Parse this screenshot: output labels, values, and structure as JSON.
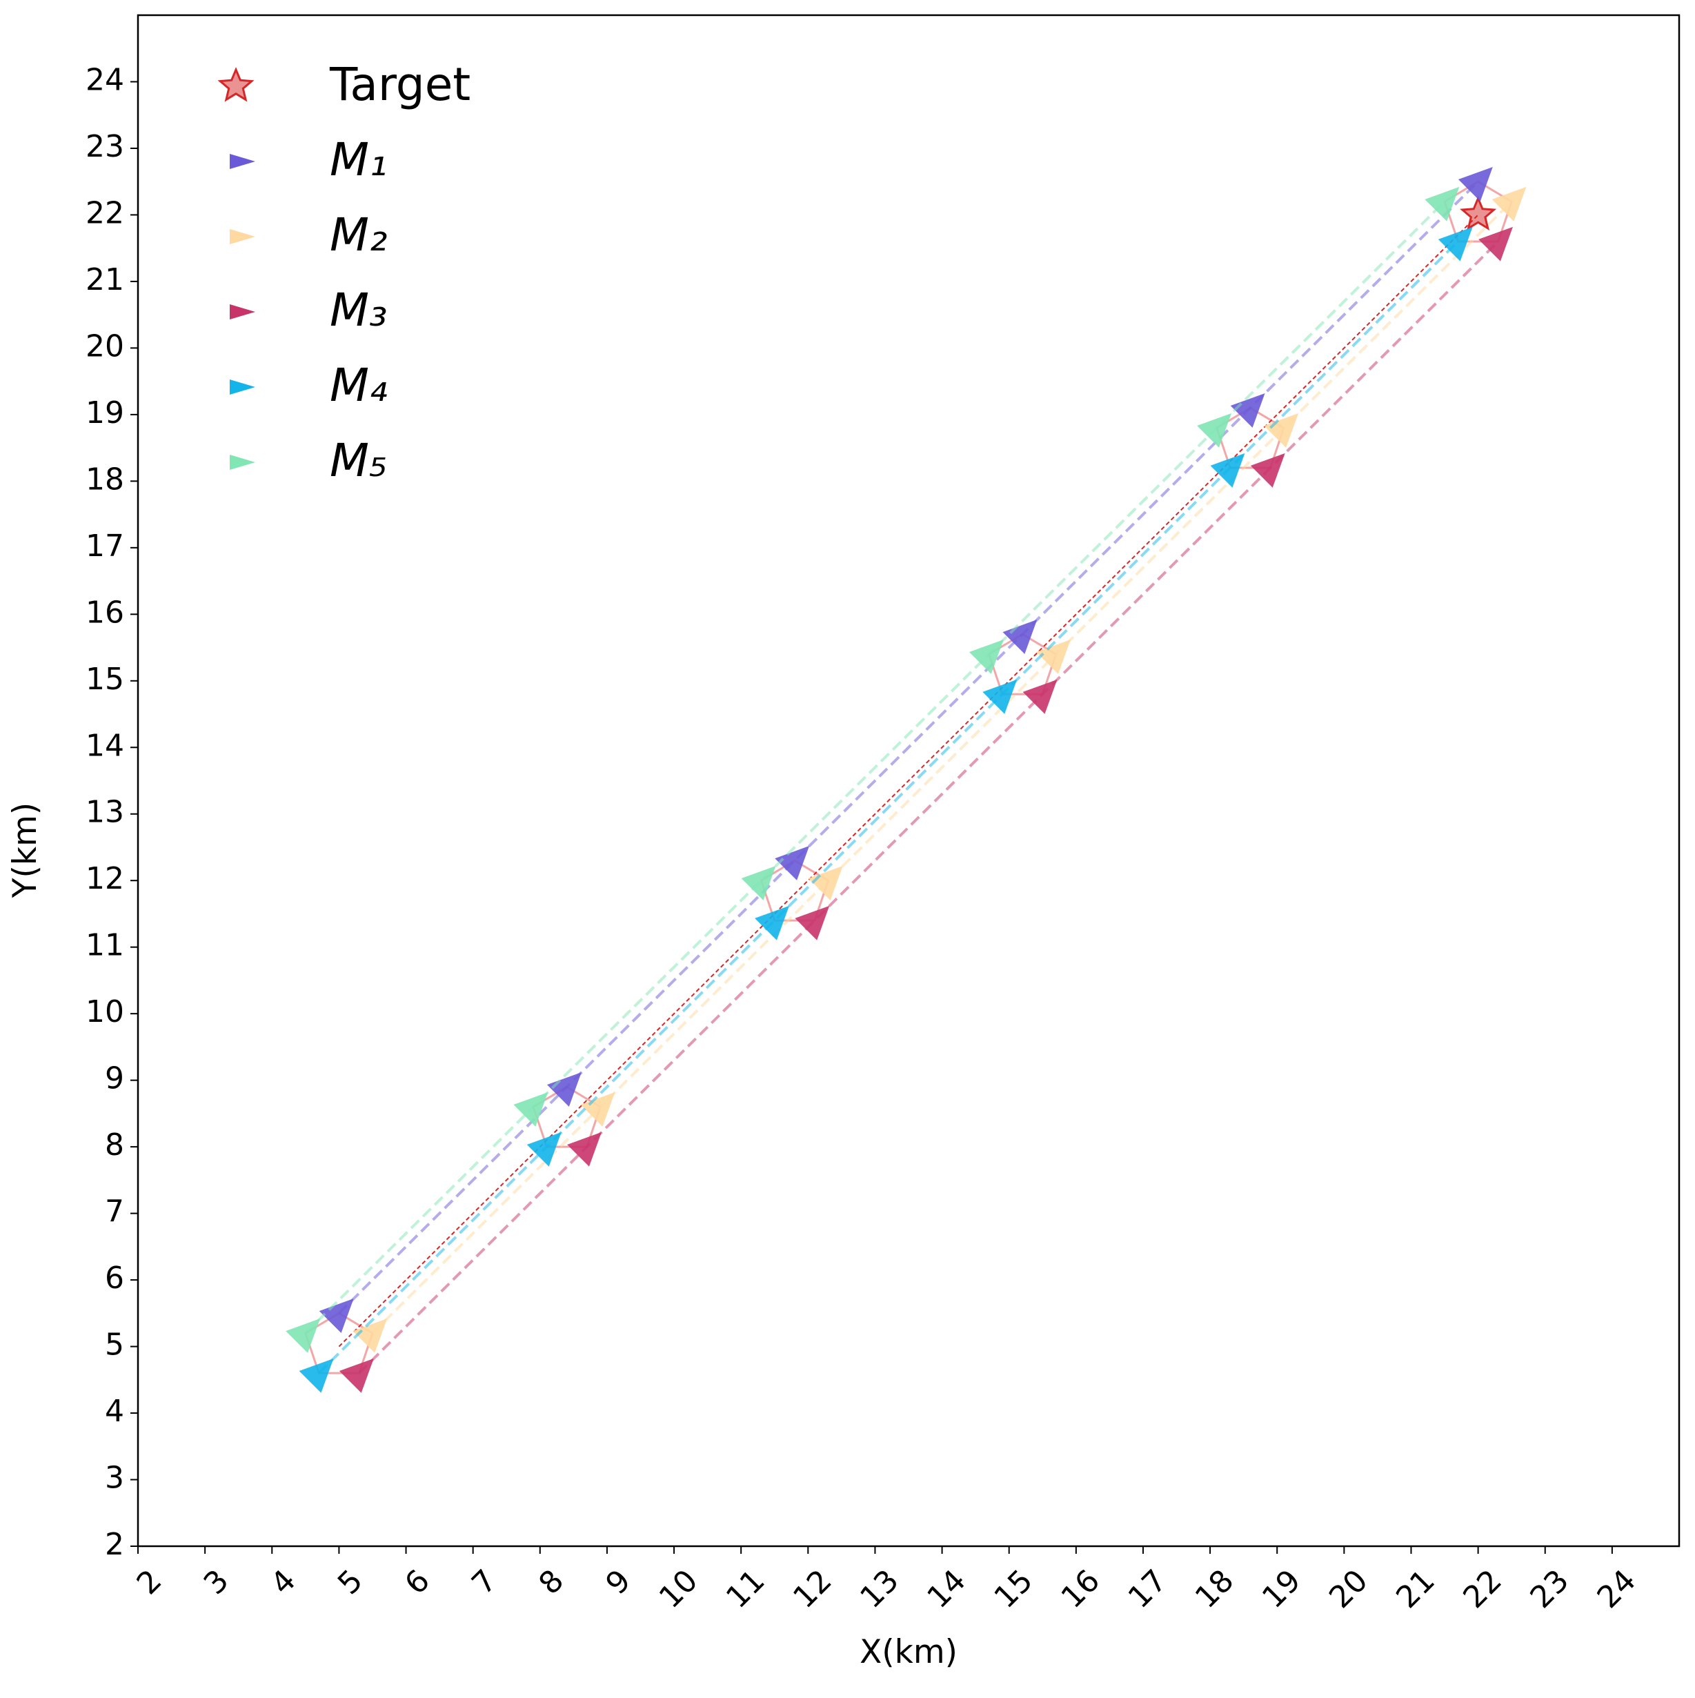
{
  "chart_data": {
    "type": "line",
    "xlabel": "X(km)",
    "ylabel": "Y(km)",
    "xlim": [
      2,
      25
    ],
    "ylim": [
      2,
      25
    ],
    "xticks": [
      2,
      3,
      4,
      5,
      6,
      7,
      8,
      9,
      10,
      11,
      12,
      13,
      14,
      15,
      16,
      17,
      18,
      19,
      20,
      21,
      22,
      23,
      24
    ],
    "yticks": [
      2,
      3,
      4,
      5,
      6,
      7,
      8,
      9,
      10,
      11,
      12,
      13,
      14,
      15,
      16,
      17,
      18,
      19,
      20,
      21,
      22,
      23,
      24
    ],
    "grid": false,
    "legend": "upper left",
    "series": [
      {
        "name": "Target",
        "color": "#d62728",
        "marker": "star",
        "x": [
          5,
          8.4,
          11.8,
          15.2,
          18.6,
          22
        ],
        "values": [
          5,
          8.4,
          11.8,
          15.2,
          18.6,
          22
        ]
      },
      {
        "name": "M₁",
        "color": "#6a5ad8",
        "marker": "triangle",
        "x": [
          5,
          8.4,
          11.8,
          15.2,
          18.6,
          22
        ],
        "values": [
          5.5,
          8.9,
          12.3,
          15.7,
          19.1,
          22.5
        ]
      },
      {
        "name": "M₂",
        "color": "#ffd9a0",
        "marker": "triangle",
        "x": [
          5.5,
          8.9,
          12.3,
          15.7,
          19.1,
          22.5
        ],
        "values": [
          5.2,
          8.6,
          12.0,
          15.4,
          18.8,
          22.2
        ]
      },
      {
        "name": "M₃",
        "color": "#c8346a",
        "marker": "triangle",
        "x": [
          5.3,
          8.7,
          12.1,
          15.5,
          18.9,
          22.3
        ],
        "values": [
          4.6,
          8.0,
          11.4,
          14.8,
          18.2,
          21.6
        ]
      },
      {
        "name": "M₄",
        "color": "#12b4ea",
        "marker": "triangle",
        "x": [
          4.7,
          8.1,
          11.5,
          14.9,
          18.3,
          21.7
        ],
        "values": [
          4.6,
          8.0,
          11.4,
          14.8,
          18.2,
          21.6
        ]
      },
      {
        "name": "M₅",
        "color": "#80e6b4",
        "marker": "triangle",
        "x": [
          4.5,
          7.9,
          11.3,
          14.7,
          18.1,
          21.5
        ],
        "values": [
          5.2,
          8.6,
          12.0,
          15.4,
          18.8,
          22.2
        ]
      }
    ]
  }
}
